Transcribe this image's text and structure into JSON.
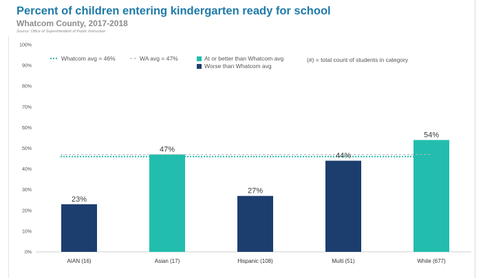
{
  "header": {
    "title": "Percent of children entering kindergarten ready for school",
    "subtitle": "Whatcom County, 2017-2018",
    "source": "Source: Office of Superintendent of Public Instruction"
  },
  "legend": {
    "whatcom_avg": "Whatcom avg = 46%",
    "wa_avg": "WA avg = 47%",
    "better": "At or better than Whatcom avg",
    "worse": "Worse than Whatcom avg",
    "note": "(#) = total count of students in category"
  },
  "colors": {
    "better": "#22bdae",
    "worse": "#1c3e6e",
    "whatcom_line": "#22bdae",
    "wa_line": "#b5b5b5",
    "title": "#1e7aa8"
  },
  "chart_data": {
    "type": "bar",
    "categories": [
      "AIAN (16)",
      "Asian (17)",
      "Hispanic (108)",
      "Multi (51)",
      "White (677)"
    ],
    "values": [
      23,
      47,
      27,
      44,
      54
    ],
    "value_labels": [
      "23%",
      "47%",
      "27%",
      "44%",
      "54%"
    ],
    "status": [
      "worse",
      "better",
      "worse",
      "worse",
      "better"
    ],
    "ylim": [
      0,
      100
    ],
    "yticks": [
      "0%",
      "10%",
      "20%",
      "30%",
      "40%",
      "50%",
      "60%",
      "70%",
      "80%",
      "90%",
      "100%"
    ],
    "reference_lines": [
      {
        "label": "Whatcom avg = 46%",
        "value": 46
      },
      {
        "label": "WA avg = 47%",
        "value": 47
      }
    ],
    "grid": false,
    "legend_position": "top"
  }
}
